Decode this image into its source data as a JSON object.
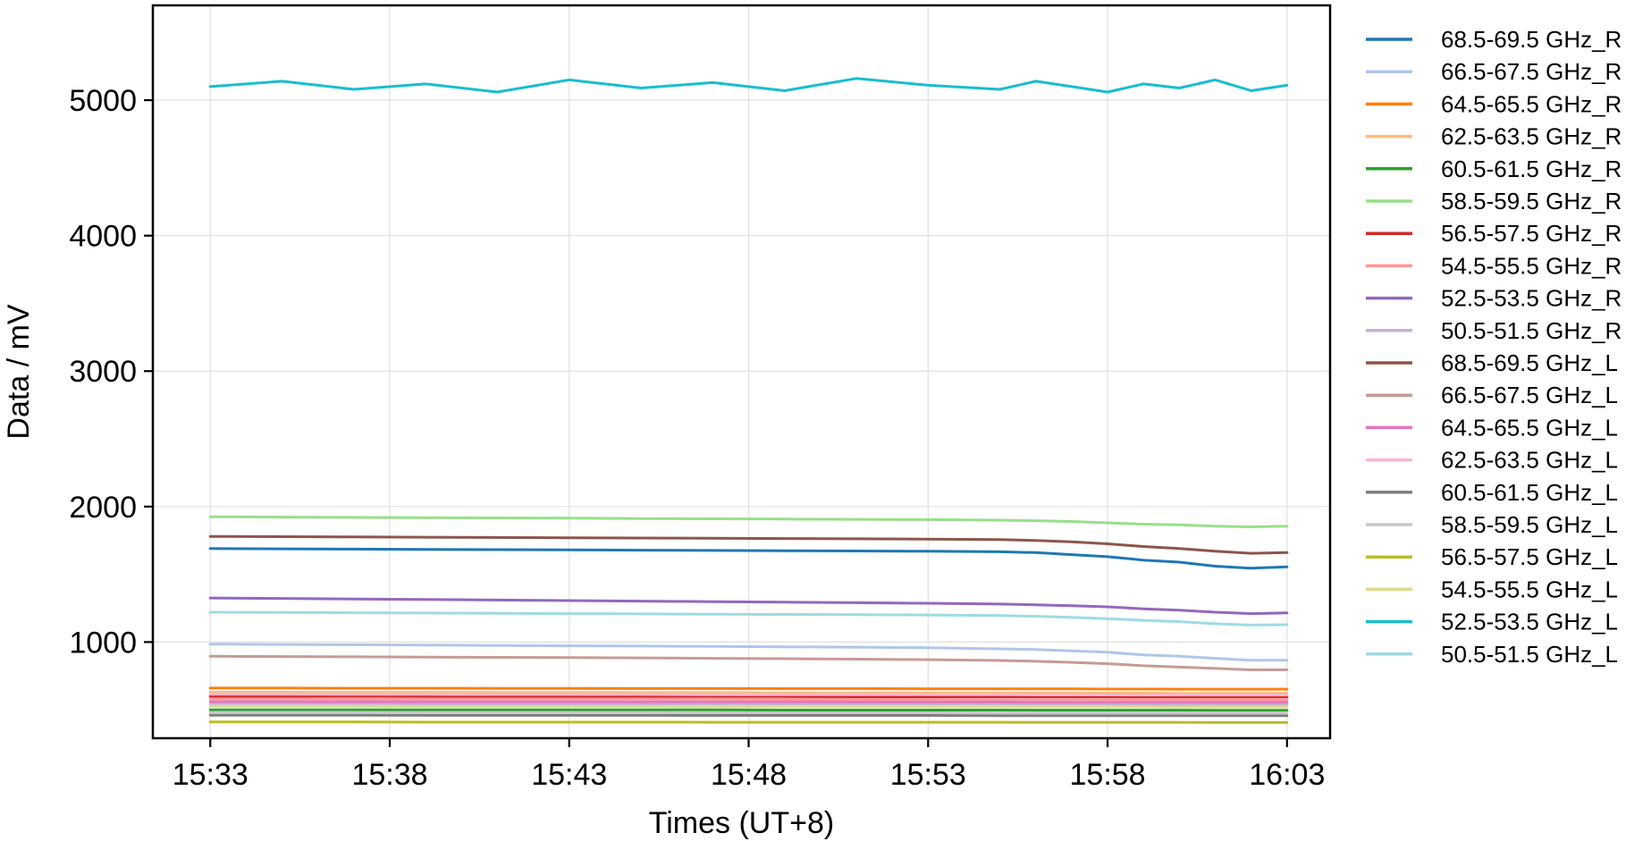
{
  "chart_data": {
    "type": "line",
    "title": "",
    "xlabel": "Times (UT+8)",
    "ylabel": "Data / mV",
    "x_ticks": [
      "15:33",
      "15:38",
      "15:43",
      "15:48",
      "15:53",
      "15:58",
      "16:03"
    ],
    "x_range_minutes": [
      -1.6,
      31.2
    ],
    "y_ticks": [
      1000,
      2000,
      3000,
      4000,
      5000
    ],
    "ylim": [
      290,
      5700
    ],
    "grid": true,
    "legend_position": "outside-right",
    "x_minutes": [
      0,
      2,
      4,
      6,
      8,
      10,
      12,
      14,
      16,
      18,
      20,
      22,
      23,
      24,
      25,
      26,
      27,
      28,
      29,
      30
    ],
    "series": [
      {
        "name": "68.5-69.5 GHz_R",
        "color": "#1f77b4",
        "values": [
          1690,
          1688,
          1686,
          1684,
          1682,
          1680,
          1678,
          1676,
          1674,
          1672,
          1670,
          1666,
          1660,
          1645,
          1630,
          1605,
          1590,
          1560,
          1545,
          1555
        ]
      },
      {
        "name": "66.5-67.5 GHz_R",
        "color": "#aec7e8",
        "values": [
          985,
          982,
          980,
          978,
          975,
          972,
          970,
          968,
          965,
          962,
          958,
          950,
          945,
          935,
          925,
          905,
          895,
          880,
          865,
          865
        ]
      },
      {
        "name": "64.5-65.5 GHz_R",
        "color": "#ff7f0e",
        "values": [
          660,
          660,
          659,
          659,
          658,
          658,
          657,
          657,
          656,
          656,
          655,
          655,
          654,
          654,
          653,
          653,
          652,
          652,
          652,
          652
        ]
      },
      {
        "name": "62.5-63.5 GHz_R",
        "color": "#ffbb78",
        "values": [
          630,
          630,
          629,
          629,
          628,
          628,
          627,
          627,
          626,
          626,
          625,
          625,
          624,
          624,
          623,
          623,
          622,
          622,
          622,
          622
        ]
      },
      {
        "name": "60.5-61.5 GHz_R",
        "color": "#2ca02c",
        "values": [
          500,
          500,
          500,
          500,
          499,
          499,
          499,
          499,
          498,
          498,
          498,
          498,
          497,
          497,
          497,
          497,
          497,
          496,
          496,
          496
        ]
      },
      {
        "name": "58.5-59.5 GHz_R",
        "color": "#98df8a",
        "values": [
          1925,
          1922,
          1920,
          1918,
          1916,
          1914,
          1912,
          1910,
          1908,
          1906,
          1904,
          1900,
          1896,
          1890,
          1880,
          1870,
          1865,
          1855,
          1850,
          1855
        ]
      },
      {
        "name": "56.5-57.5 GHz_R",
        "color": "#d62728",
        "values": [
          600,
          600,
          600,
          599,
          599,
          599,
          598,
          598,
          598,
          597,
          597,
          597,
          596,
          596,
          596,
          595,
          595,
          595,
          595,
          595
        ]
      },
      {
        "name": "54.5-55.5 GHz_R",
        "color": "#ff9896",
        "values": [
          580,
          580,
          579,
          579,
          579,
          578,
          578,
          578,
          577,
          577,
          577,
          576,
          576,
          576,
          575,
          575,
          575,
          574,
          574,
          574
        ]
      },
      {
        "name": "52.5-53.5 GHz_R",
        "color": "#9467bd",
        "values": [
          1325,
          1322,
          1318,
          1314,
          1310,
          1306,
          1302,
          1298,
          1294,
          1290,
          1286,
          1280,
          1275,
          1268,
          1260,
          1245,
          1235,
          1220,
          1210,
          1215
        ]
      },
      {
        "name": "50.5-51.5 GHz_R",
        "color": "#c5b0d5",
        "values": [
          545,
          545,
          545,
          544,
          544,
          544,
          544,
          543,
          543,
          543,
          543,
          542,
          542,
          542,
          542,
          541,
          541,
          541,
          541,
          541
        ]
      },
      {
        "name": "68.5-69.5 GHz_L",
        "color": "#8c564b",
        "values": [
          1780,
          1778,
          1776,
          1774,
          1772,
          1770,
          1768,
          1766,
          1764,
          1762,
          1760,
          1756,
          1750,
          1740,
          1725,
          1705,
          1690,
          1670,
          1655,
          1660
        ]
      },
      {
        "name": "66.5-67.5 GHz_L",
        "color": "#c49c94",
        "values": [
          895,
          893,
          891,
          889,
          887,
          885,
          883,
          880,
          877,
          874,
          870,
          864,
          858,
          850,
          840,
          825,
          815,
          805,
          795,
          795
        ]
      },
      {
        "name": "64.5-65.5 GHz_L",
        "color": "#e377c2",
        "values": [
          560,
          560,
          560,
          559,
          559,
          559,
          558,
          558,
          558,
          557,
          557,
          557,
          556,
          556,
          556,
          556,
          555,
          555,
          555,
          555
        ]
      },
      {
        "name": "62.5-63.5 GHz_L",
        "color": "#f7b6d2",
        "values": [
          615,
          615,
          614,
          614,
          613,
          613,
          613,
          612,
          612,
          611,
          611,
          611,
          610,
          610,
          610,
          609,
          609,
          609,
          609,
          609
        ]
      },
      {
        "name": "60.5-61.5 GHz_L",
        "color": "#7f7f7f",
        "values": [
          460,
          460,
          460,
          459,
          459,
          459,
          459,
          458,
          458,
          458,
          458,
          457,
          457,
          457,
          457,
          457,
          456,
          456,
          456,
          456
        ]
      },
      {
        "name": "58.5-59.5 GHz_L",
        "color": "#c7c7c7",
        "values": [
          480,
          480,
          480,
          479,
          479,
          479,
          479,
          478,
          478,
          478,
          478,
          477,
          477,
          477,
          477,
          477,
          476,
          476,
          476,
          476
        ]
      },
      {
        "name": "56.5-57.5 GHz_L",
        "color": "#bcbd22",
        "values": [
          410,
          410,
          410,
          409,
          409,
          409,
          409,
          408,
          408,
          408,
          408,
          408,
          407,
          407,
          407,
          407,
          407,
          406,
          406,
          406
        ]
      },
      {
        "name": "54.5-55.5 GHz_L",
        "color": "#dbdb8d",
        "values": [
          525,
          525,
          525,
          524,
          524,
          524,
          524,
          523,
          523,
          523,
          523,
          522,
          522,
          522,
          522,
          522,
          521,
          521,
          521,
          521
        ]
      },
      {
        "name": "52.5-53.5 GHz_L",
        "color": "#17becf",
        "values": [
          5100,
          5140,
          5080,
          5120,
          5060,
          5150,
          5090,
          5130,
          5070,
          5160,
          5110,
          5080,
          5140,
          5100,
          5060,
          5120,
          5090,
          5150,
          5070,
          5110
        ]
      },
      {
        "name": "50.5-51.5 GHz_L",
        "color": "#9edae5",
        "values": [
          1220,
          1218,
          1216,
          1214,
          1212,
          1210,
          1208,
          1206,
          1204,
          1202,
          1200,
          1195,
          1190,
          1182,
          1172,
          1160,
          1150,
          1135,
          1125,
          1128
        ]
      }
    ]
  }
}
